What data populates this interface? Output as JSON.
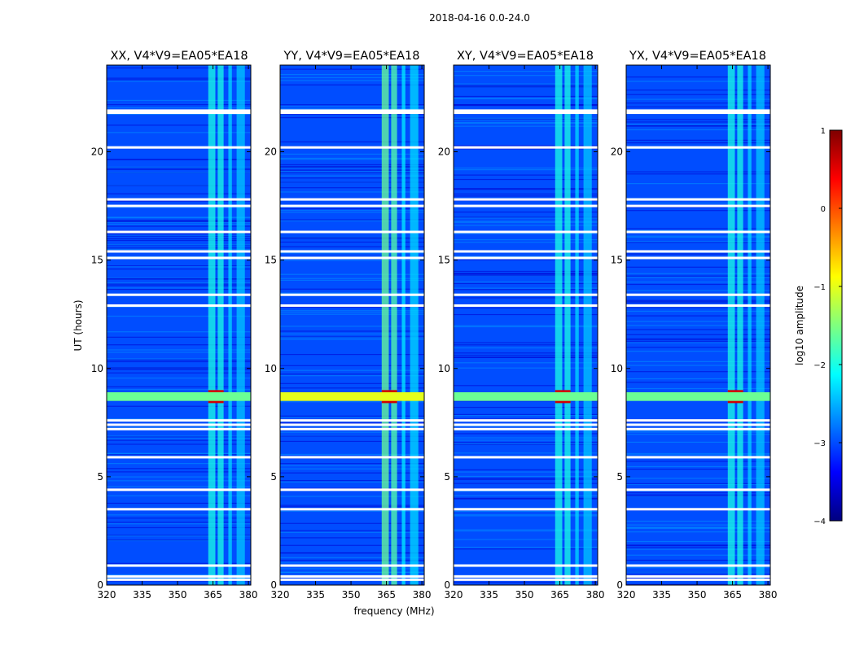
{
  "figure": {
    "suptitle": "2018-04-16 0.0-24.0"
  },
  "chart_data": [
    {
      "type": "heatmap",
      "title": "XX, V4*V9=EA05*EA18",
      "xlabel": "",
      "ylabel": "UT (hours)",
      "xlim": [
        320,
        381
      ],
      "ylim": [
        0,
        24
      ],
      "xticks": [
        "320",
        "335",
        "350",
        "365",
        "380"
      ],
      "yticks": [
        "0",
        "5",
        "10",
        "15",
        "20"
      ],
      "background_log_amplitude": -3.0,
      "features": [
        {
          "name": "RFI band",
          "freq_range": [
            363,
            366
          ],
          "level": -2.0
        },
        {
          "name": "RFI band",
          "freq_range": [
            367,
            369.5
          ],
          "level": -2.0
        },
        {
          "name": "RFI band",
          "freq_range": [
            371.5,
            373
          ],
          "level": -2.3
        },
        {
          "name": "RFI band",
          "freq_range": [
            375,
            378.5
          ],
          "level": -2.4
        },
        {
          "name": "bright event",
          "time_range": [
            8.4,
            9.0
          ],
          "freq_range": [
            363,
            369.5
          ],
          "level": 0.6
        },
        {
          "name": "broadband event",
          "time_range": [
            8.5,
            8.9
          ],
          "level": -1.6
        }
      ],
      "flagged_time_rows_hours": [
        0.25,
        0.4,
        0.9,
        3.5,
        4.4,
        5.9,
        7.2,
        7.4,
        7.6,
        12.9,
        13.4,
        15.1,
        15.4,
        16.3,
        17.5,
        17.8,
        20.2,
        21.8,
        21.9
      ]
    },
    {
      "type": "heatmap",
      "title": "YY, V4*V9=EA05*EA18",
      "xlabel": "frequency (MHz)",
      "ylabel": "",
      "xlim": [
        320,
        381
      ],
      "ylim": [
        0,
        24
      ],
      "xticks": [
        "320",
        "335",
        "350",
        "365",
        "380"
      ],
      "yticks": [
        "0",
        "5",
        "10",
        "15",
        "20"
      ],
      "background_log_amplitude": -3.0,
      "features": [
        {
          "name": "RFI band",
          "freq_range": [
            363,
            366
          ],
          "level": -1.6
        },
        {
          "name": "RFI band",
          "freq_range": [
            367,
            369.5
          ],
          "level": -1.7
        },
        {
          "name": "RFI band",
          "freq_range": [
            371.5,
            373
          ],
          "level": -2.2
        },
        {
          "name": "RFI band",
          "freq_range": [
            375,
            378.5
          ],
          "level": -2.3
        },
        {
          "name": "bright event",
          "time_range": [
            8.4,
            9.0
          ],
          "freq_range": [
            363,
            369.5
          ],
          "level": 0.6
        },
        {
          "name": "broadband event",
          "time_range": [
            8.5,
            8.9
          ],
          "level": -1.0
        }
      ],
      "flagged_time_rows_hours": [
        0.25,
        0.4,
        0.9,
        3.5,
        4.4,
        5.9,
        7.2,
        7.4,
        7.6,
        12.9,
        13.4,
        15.1,
        15.4,
        16.3,
        17.5,
        17.8,
        20.2,
        21.8,
        21.9
      ]
    },
    {
      "type": "heatmap",
      "title": "XY, V4*V9=EA05*EA18",
      "xlabel": "",
      "ylabel": "",
      "xlim": [
        320,
        381
      ],
      "ylim": [
        0,
        24
      ],
      "xticks": [
        "320",
        "335",
        "350",
        "365",
        "380"
      ],
      "yticks": [
        "0",
        "5",
        "10",
        "15",
        "20"
      ],
      "background_log_amplitude": -3.0,
      "features": [
        {
          "name": "RFI band",
          "freq_range": [
            363,
            366
          ],
          "level": -2.0
        },
        {
          "name": "RFI band",
          "freq_range": [
            367,
            369.5
          ],
          "level": -2.0
        },
        {
          "name": "RFI band",
          "freq_range": [
            371.5,
            373
          ],
          "level": -2.3
        },
        {
          "name": "RFI band",
          "freq_range": [
            375,
            378.5
          ],
          "level": -2.4
        },
        {
          "name": "bright event",
          "time_range": [
            8.4,
            9.0
          ],
          "freq_range": [
            363,
            369.5
          ],
          "level": 0.6
        },
        {
          "name": "broadband event",
          "time_range": [
            8.5,
            8.9
          ],
          "level": -1.6
        }
      ],
      "flagged_time_rows_hours": [
        0.25,
        0.4,
        0.9,
        3.5,
        4.4,
        5.9,
        7.2,
        7.4,
        7.6,
        12.9,
        13.4,
        15.1,
        15.4,
        16.3,
        17.5,
        17.8,
        20.2,
        21.8,
        21.9
      ]
    },
    {
      "type": "heatmap",
      "title": "YX, V4*V9=EA05*EA18",
      "xlabel": "",
      "ylabel": "",
      "xlim": [
        320,
        381
      ],
      "ylim": [
        0,
        24
      ],
      "xticks": [
        "320",
        "335",
        "350",
        "365",
        "380"
      ],
      "yticks": [
        "0",
        "5",
        "10",
        "15",
        "20"
      ],
      "background_log_amplitude": -3.0,
      "features": [
        {
          "name": "RFI band",
          "freq_range": [
            363,
            366
          ],
          "level": -2.0
        },
        {
          "name": "RFI band",
          "freq_range": [
            367,
            369.5
          ],
          "level": -2.0
        },
        {
          "name": "RFI band",
          "freq_range": [
            371.5,
            373
          ],
          "level": -2.3
        },
        {
          "name": "RFI band",
          "freq_range": [
            375,
            378.5
          ],
          "level": -2.4
        },
        {
          "name": "bright event",
          "time_range": [
            8.4,
            9.0
          ],
          "freq_range": [
            363,
            369.5
          ],
          "level": 0.6
        },
        {
          "name": "broadband event",
          "time_range": [
            8.5,
            8.9
          ],
          "level": -1.6
        }
      ],
      "flagged_time_rows_hours": [
        0.25,
        0.4,
        0.9,
        3.5,
        4.4,
        5.9,
        7.2,
        7.4,
        7.6,
        12.9,
        13.4,
        15.1,
        15.4,
        16.3,
        17.5,
        17.8,
        20.2,
        21.8,
        21.9
      ]
    }
  ],
  "colorbar": {
    "label": "log10 amplitude",
    "range": [
      -4,
      1
    ],
    "ticks": [
      "1",
      "0",
      "−1",
      "−2",
      "−3",
      "−4"
    ],
    "colormap": "jet",
    "colors": [
      "#00007f",
      "#0000ff",
      "#007fff",
      "#00ffff",
      "#7fff7f",
      "#ffff00",
      "#ff7f00",
      "#ff0000",
      "#7f0000"
    ]
  }
}
